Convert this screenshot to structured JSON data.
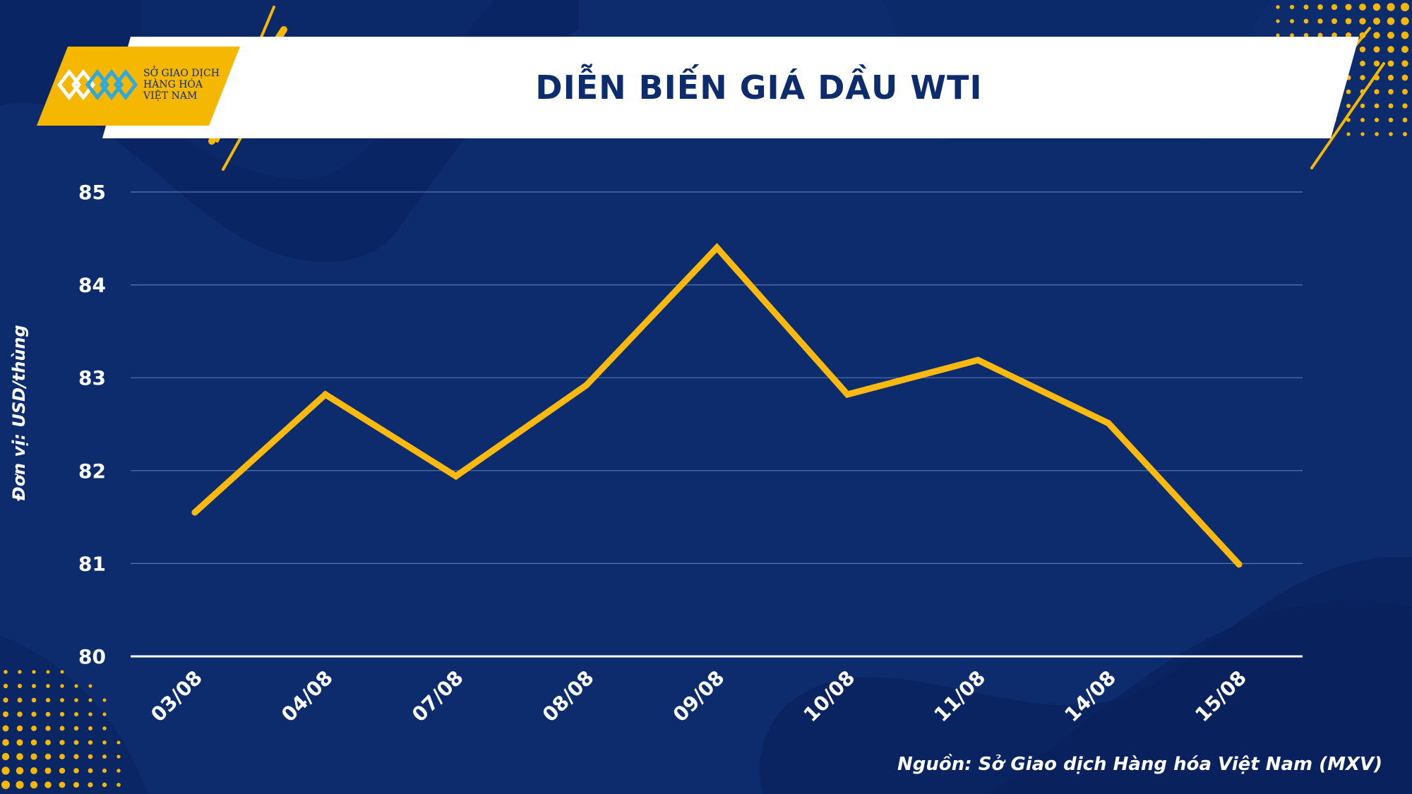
{
  "header": {
    "title": "DIỄN BIẾN GIÁ DẦU WTI"
  },
  "logo": {
    "line1": "SỞ GIAO DỊCH",
    "line2": "HÀNG HÓA",
    "line3": "VIỆT NAM"
  },
  "footer": {
    "source": "Nguồn: Sở Giao dịch Hàng hóa Việt Nam (MXV)"
  },
  "colors": {
    "background": "#0d2c6e",
    "accent": "#f5b700",
    "line": "#f9b90f",
    "text": "#ffffff"
  },
  "chart_data": {
    "type": "line",
    "title": "DIỄN BIẾN GIÁ DẦU WTI",
    "ylabel": "Đơn vị: USD/thùng",
    "xlabel": "",
    "categories": [
      "03/08",
      "04/08",
      "07/08",
      "08/08",
      "09/08",
      "10/08",
      "11/08",
      "14/08",
      "15/08"
    ],
    "series": [
      {
        "values": [
          81.55,
          82.82,
          81.94,
          82.92,
          84.4,
          82.82,
          83.19,
          82.51,
          80.99
        ]
      }
    ],
    "ylim": [
      80,
      85
    ],
    "yticks": [
      "80",
      "81",
      "82",
      "83",
      "84",
      "85"
    ],
    "grid": true,
    "legend": "none"
  }
}
